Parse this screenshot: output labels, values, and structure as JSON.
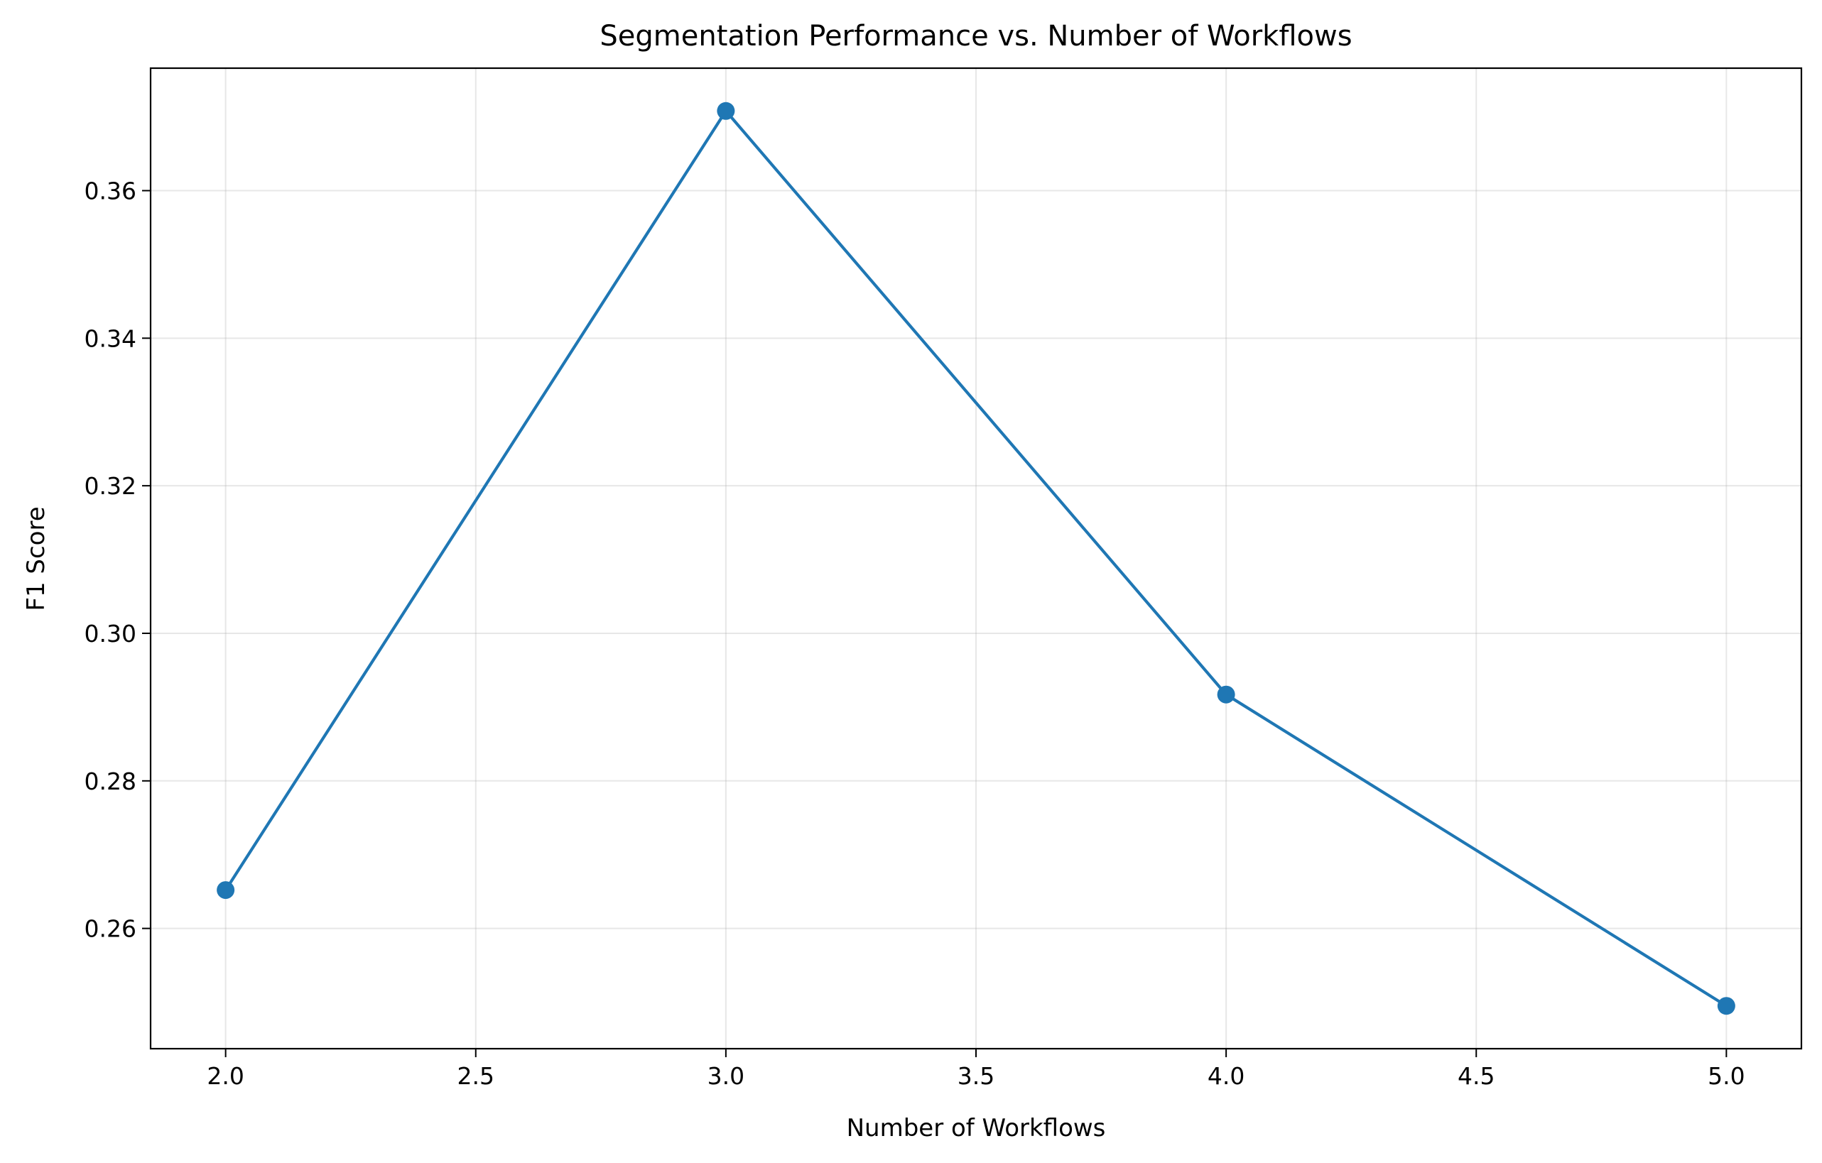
{
  "chart_data": {
    "type": "line",
    "title": "Segmentation Performance vs. Number of Workflows",
    "xlabel": "Number of Workflows",
    "ylabel": "F1 Score",
    "x": [
      2.0,
      3.0,
      4.0,
      5.0
    ],
    "series": [
      {
        "values": [
          0.2652,
          0.3708,
          0.2917,
          0.2495
        ],
        "color": "#1f77b4"
      }
    ],
    "xlim": [
      1.85,
      5.15
    ],
    "ylim": [
      0.2437,
      0.3766
    ],
    "xticks": [
      2.0,
      2.5,
      3.0,
      3.5,
      4.0,
      4.5,
      5.0
    ],
    "xtick_labels": [
      "2.0",
      "2.5",
      "3.0",
      "3.5",
      "4.0",
      "4.5",
      "5.0"
    ],
    "yticks": [
      0.26,
      0.28,
      0.3,
      0.32,
      0.34,
      0.36
    ],
    "ytick_labels": [
      "0.26",
      "0.28",
      "0.30",
      "0.32",
      "0.34",
      "0.36"
    ],
    "grid": true,
    "markers": "circle"
  }
}
